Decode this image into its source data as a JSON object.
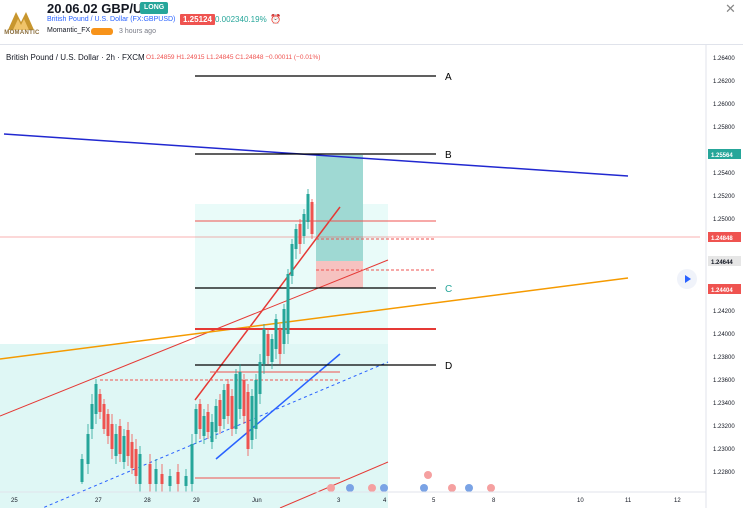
{
  "header": {
    "title": "20.06.02 GBP/USD",
    "badge": "LONG",
    "symbol_line": "British Pound / U.S. Dollar (FX:GBPUSD)",
    "price": "1.25124",
    "change": "0.00234",
    "change_pct": "0.19%",
    "author": "Momantic_FX",
    "time_ago": "3 hours ago",
    "logo_text": "MOMANTIC",
    "close_glyph": "✕",
    "alarm_icon": "alarm-clock-icon"
  },
  "chart": {
    "legend": "British Pound / U.S. Dollar · 2h · FXCM",
    "ohlc": "O1.24859  H1.24915  L1.24845  C1.24848  −0.00011 (−0.01%)",
    "labels": {
      "a": "A",
      "b": "B",
      "c": "C",
      "d": "D"
    },
    "price_ticks": [
      "1.26400",
      "1.26200",
      "1.26000",
      "1.25800",
      "1.25564",
      "1.25400",
      "1.25200",
      "1.25000",
      "1.24848",
      "1.24644",
      "1.24404",
      "1.24200",
      "1.24000",
      "1.23800",
      "1.23600",
      "1.23400",
      "1.23200",
      "1.23000",
      "1.22800"
    ],
    "time_ticks": [
      "25",
      "27",
      "28",
      "29",
      "Jun",
      "3",
      "4",
      "5",
      "8",
      "10",
      "11",
      "12"
    ],
    "price_tags": {
      "current": "1.25564",
      "last": "1.24848",
      "mid": "1.24644",
      "level": "1.24404"
    }
  },
  "chart_data": {
    "type": "line",
    "title": "British Pound / U.S. Dollar · 2h · FXCM",
    "series_instrument": "GBPUSD",
    "ylim": [
      1.227,
      1.265
    ],
    "levels": [
      {
        "name": "A",
        "value": 1.2624
      },
      {
        "name": "B",
        "value": 1.2556
      },
      {
        "name": "C",
        "value": 1.244
      },
      {
        "name": "D",
        "value": 1.2372
      }
    ],
    "position": {
      "direction": "long",
      "entry": 1.2485,
      "target": 1.25564,
      "stop": 1.24404
    },
    "colors": {
      "up": "#26a69a",
      "down": "#ef5350",
      "trend_blue": "#2128d0",
      "trend_orange": "#f59a00",
      "channel_red": "#e53935"
    }
  }
}
